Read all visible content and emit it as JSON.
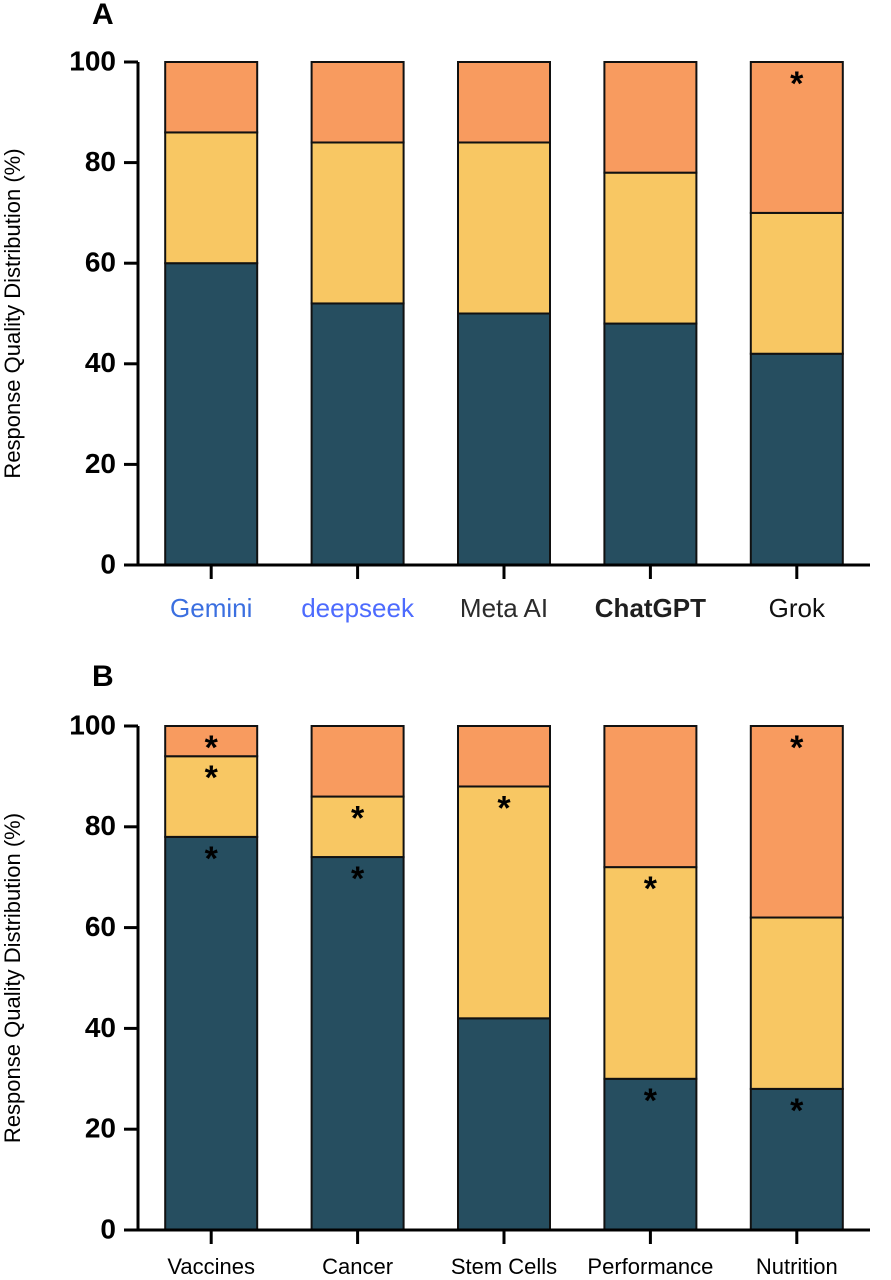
{
  "chart_data": [
    {
      "type": "stacked_bar",
      "title": "A",
      "ylabel": "Response Quality Distribution (%)",
      "categories": [
        "Gemini",
        "deepseek",
        "Meta AI",
        "ChatGPT",
        "Grok"
      ],
      "series": [
        {
          "color": "#264e60",
          "values": [
            60,
            52,
            50,
            48,
            42
          ],
          "annotations": [
            null,
            null,
            null,
            null,
            null
          ]
        },
        {
          "color": "#f8c763",
          "values": [
            26,
            32,
            34,
            30,
            28
          ],
          "annotations": [
            null,
            null,
            null,
            null,
            null
          ]
        },
        {
          "color": "#f89b5f",
          "values": [
            14,
            16,
            16,
            22,
            30
          ],
          "annotations": [
            null,
            null,
            null,
            null,
            "*"
          ]
        }
      ],
      "ylim": [
        0,
        100
      ],
      "yticks": [
        0,
        20,
        40,
        60,
        80,
        100
      ]
    },
    {
      "type": "stacked_bar",
      "title": "B",
      "ylabel": "Response Quality Distribution (%)",
      "categories": [
        "Vaccines",
        "Cancer",
        "Stem Cells",
        "Performance",
        "Nutrition"
      ],
      "series": [
        {
          "color": "#264e60",
          "values": [
            78,
            74,
            42,
            30,
            28
          ],
          "annotations": [
            "*",
            "*",
            null,
            "*",
            "*"
          ]
        },
        {
          "color": "#f8c763",
          "values": [
            16,
            12,
            46,
            42,
            34
          ],
          "annotations": [
            "*",
            "*",
            "*",
            "*",
            null
          ]
        },
        {
          "color": "#f89b5f",
          "values": [
            6,
            14,
            12,
            28,
            38
          ],
          "annotations": [
            "*",
            null,
            null,
            null,
            "*"
          ]
        }
      ],
      "ylim": [
        0,
        100
      ],
      "yticks": [
        0,
        20,
        40,
        60,
        80,
        100
      ]
    }
  ]
}
